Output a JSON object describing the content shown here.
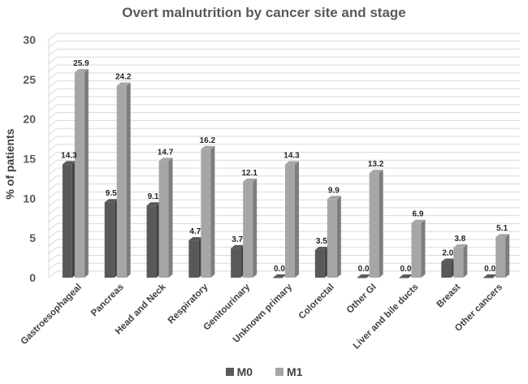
{
  "chart_data": {
    "type": "bar",
    "title": "Overt malnutrition by cancer site and stage",
    "xlabel": "",
    "ylabel": "% of patients",
    "ylim": [
      0,
      30
    ],
    "yticks": [
      0,
      5,
      10,
      15,
      20,
      25,
      30
    ],
    "categories": [
      "Gastroesophageal",
      "Pancreas",
      "Head and Neck",
      "Respiratory",
      "Genitourinary",
      "Unknown primary",
      "Colorectal",
      "Other GI",
      "Liver and bile ducts",
      "Breast",
      "Other cancers"
    ],
    "series": [
      {
        "name": "M0",
        "color": "#595959",
        "values": [
          14.3,
          9.5,
          9.1,
          4.7,
          3.7,
          0.0,
          3.5,
          0.0,
          0.0,
          2.0,
          0.0
        ],
        "labels": [
          "14.3",
          "9.5",
          "9.1",
          "4.7",
          "3.7",
          "0.0",
          "3.5",
          "0.0",
          "0.0",
          "2.0",
          "0.0"
        ]
      },
      {
        "name": "M1",
        "color": "#a6a6a6",
        "values": [
          25.9,
          24.2,
          14.7,
          16.2,
          12.1,
          14.3,
          9.9,
          13.2,
          6.9,
          3.8,
          5.1
        ],
        "labels": [
          "25.9",
          "24.2",
          "14.7",
          "16.2",
          "12.1",
          "14.3",
          "9.9",
          "13.2",
          "6.9",
          "3.8",
          "5.1"
        ]
      }
    ],
    "legend_position": "bottom",
    "grid": true
  }
}
